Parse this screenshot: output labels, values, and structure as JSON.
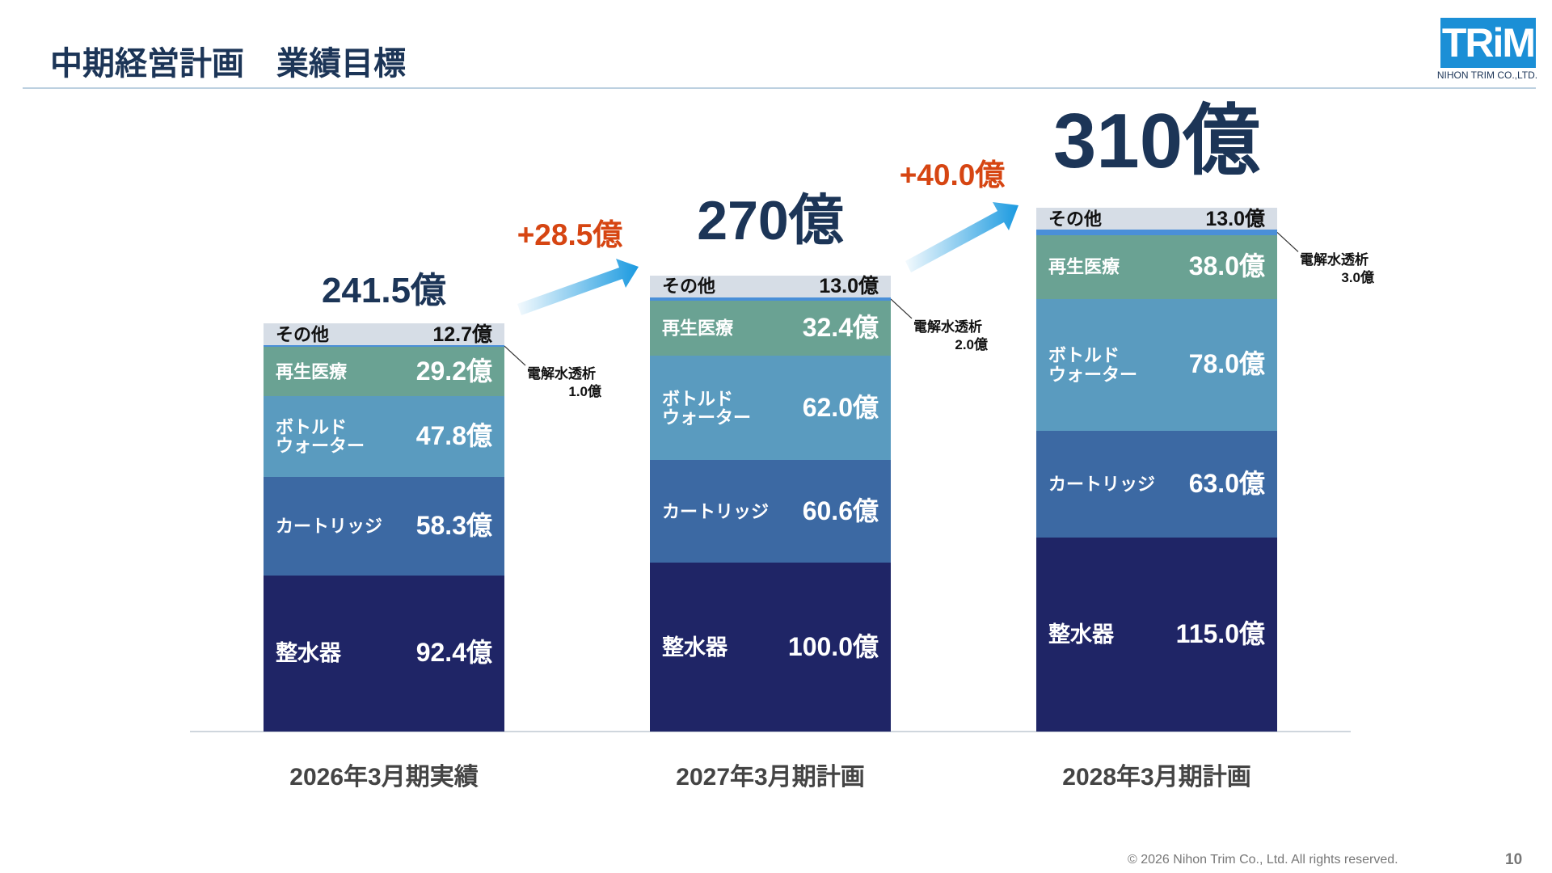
{
  "header": {
    "title": "中期経営計画　業績目標"
  },
  "logo": {
    "mark": "TRiM",
    "company": "NIHON TRIM CO.,LTD."
  },
  "chart_data": {
    "type": "bar",
    "stacked": true,
    "categories": [
      "2026年3月期実績",
      "2027年3月期計画",
      "2028年3月期計画"
    ],
    "series": [
      {
        "name": "整水器",
        "color": "#1f2566",
        "label_color": "#ffffff",
        "values": [
          92.4,
          100.0,
          115.0
        ],
        "value_labels": [
          "92.4億",
          "100.0億",
          "115.0億"
        ]
      },
      {
        "name": "カートリッジ",
        "color": "#3c69a3",
        "label_color": "#ffffff",
        "values": [
          58.3,
          60.6,
          63.0
        ],
        "value_labels": [
          "58.3億",
          "60.6億",
          "63.0億"
        ]
      },
      {
        "name": "ボトルド\nウォーター",
        "color": "#5a9bbf",
        "label_color": "#ffffff",
        "values": [
          47.8,
          62.0,
          78.0
        ],
        "value_labels": [
          "47.8億",
          "62.0億",
          "78.0億"
        ]
      },
      {
        "name": "再生医療",
        "color": "#6aa293",
        "label_color": "#ffffff",
        "values": [
          29.2,
          32.4,
          38.0
        ],
        "value_labels": [
          "29.2億",
          "32.4億",
          "38.0億"
        ]
      },
      {
        "name": "電解水透析",
        "color": "#4a8fd8",
        "label_color": "#111111",
        "callout": true,
        "values": [
          1.0,
          2.0,
          3.0
        ],
        "value_labels": [
          "1.0億",
          "2.0億",
          "3.0億"
        ]
      },
      {
        "name": "その他",
        "color": "#d6dde6",
        "label_color": "#111111",
        "values": [
          12.7,
          13.0,
          13.0
        ],
        "value_labels": [
          "12.7億",
          "13.0億",
          "13.0億"
        ]
      }
    ],
    "totals": {
      "values": [
        241.5,
        270,
        310
      ],
      "labels": [
        "241.5億",
        "270億",
        "310億"
      ]
    },
    "increments": {
      "values": [
        28.5,
        40.0
      ],
      "labels": [
        "+28.5億",
        "+40.0億"
      ]
    }
  },
  "footer": {
    "copyright": "© 2026 Nihon Trim Co., Ltd. All rights reserved.",
    "page": "10"
  }
}
